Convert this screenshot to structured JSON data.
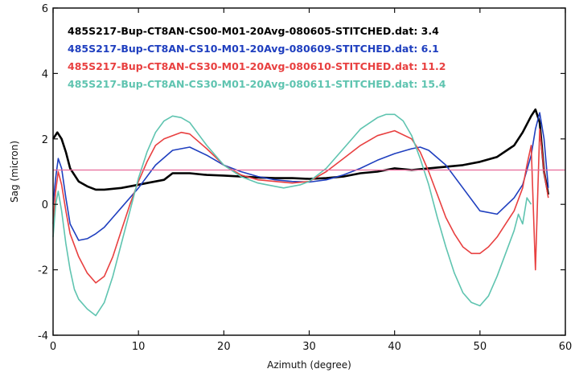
{
  "chart_data": {
    "type": "line",
    "xlabel": "Azimuth (degree)",
    "ylabel": "Sag (micron)",
    "xlim": [
      0,
      60
    ],
    "ylim": [
      -4,
      6
    ],
    "xticks": [
      "0",
      "10",
      "20",
      "30",
      "40",
      "50",
      "60"
    ],
    "yticks": [
      "-4",
      "-2",
      "0",
      "2",
      "4",
      "6"
    ],
    "legend_position": "top-left",
    "reference_line": {
      "y": 1.05,
      "color": "#e86a9a"
    },
    "series": [
      {
        "name": "485S217-Bup-CT8AN-CS00-M01-20Avg-080605-STITCHED.dat: 3.4",
        "color": "#000000",
        "x": [
          0,
          0.5,
          1,
          1.5,
          2,
          3,
          4,
          5,
          6,
          8,
          10,
          11,
          12,
          13,
          14,
          16,
          18,
          20,
          22,
          24,
          26,
          28,
          30,
          32,
          34,
          36,
          38,
          40,
          42,
          44,
          46,
          48,
          50,
          52,
          54,
          55,
          56,
          56.5,
          57,
          57.5,
          58
        ],
        "values": [
          2.0,
          2.2,
          2.0,
          1.6,
          1.1,
          0.7,
          0.55,
          0.45,
          0.45,
          0.5,
          0.6,
          0.65,
          0.7,
          0.75,
          0.95,
          0.95,
          0.9,
          0.88,
          0.85,
          0.82,
          0.8,
          0.8,
          0.78,
          0.8,
          0.85,
          0.95,
          1.0,
          1.1,
          1.05,
          1.1,
          1.15,
          1.2,
          1.3,
          1.45,
          1.8,
          2.2,
          2.7,
          2.9,
          2.5,
          1.0,
          0.3
        ]
      },
      {
        "name": "485S217-Bup-CT8AN-CS10-M01-20Avg-080609-STITCHED.dat: 6.1",
        "color": "#1f3fbf",
        "x": [
          0,
          0.3,
          0.6,
          1,
          1.5,
          2,
          3,
          4,
          5,
          6,
          7,
          8,
          10,
          12,
          14,
          16,
          18,
          20,
          22,
          24,
          26,
          28,
          30,
          32,
          34,
          36,
          38,
          40,
          42,
          43,
          44,
          46,
          48,
          50,
          52,
          54,
          55,
          56,
          56.5,
          57,
          57.5,
          58
        ],
        "values": [
          0.0,
          0.8,
          1.4,
          1.1,
          0.2,
          -0.6,
          -1.1,
          -1.05,
          -0.9,
          -0.7,
          -0.4,
          -0.1,
          0.5,
          1.2,
          1.65,
          1.75,
          1.5,
          1.2,
          1.0,
          0.85,
          0.75,
          0.7,
          0.68,
          0.75,
          0.9,
          1.1,
          1.35,
          1.55,
          1.7,
          1.75,
          1.65,
          1.2,
          0.5,
          -0.2,
          -0.3,
          0.2,
          0.6,
          1.5,
          2.3,
          2.8,
          2.0,
          0.5
        ]
      },
      {
        "name": "485S217-Bup-CT8AN-CS30-M01-20Avg-080610-STITCHED.dat: 11.2",
        "color": "#e84040",
        "x": [
          0,
          0.3,
          0.6,
          1,
          1.5,
          2,
          3,
          4,
          5,
          6,
          7,
          8,
          9,
          10,
          11,
          12,
          13,
          14,
          15,
          16,
          18,
          20,
          22,
          24,
          26,
          28,
          30,
          32,
          34,
          36,
          38,
          40,
          42,
          43,
          44,
          45,
          46,
          47,
          48,
          49,
          50,
          51,
          52,
          53,
          54,
          55,
          55.5,
          56,
          56.5,
          57,
          57.5,
          58
        ],
        "values": [
          -0.6,
          0.4,
          1.0,
          0.6,
          -0.2,
          -0.9,
          -1.6,
          -2.1,
          -2.4,
          -2.2,
          -1.6,
          -0.8,
          0.0,
          0.7,
          1.3,
          1.8,
          2.0,
          2.1,
          2.2,
          2.15,
          1.7,
          1.2,
          0.9,
          0.75,
          0.7,
          0.65,
          0.7,
          1.0,
          1.4,
          1.8,
          2.1,
          2.25,
          2.0,
          1.6,
          1.0,
          0.3,
          -0.4,
          -0.9,
          -1.3,
          -1.5,
          -1.5,
          -1.3,
          -1.0,
          -0.6,
          -0.2,
          0.5,
          1.2,
          1.8,
          -2.0,
          2.3,
          1.0,
          0.2
        ]
      },
      {
        "name": "485S217-Bup-CT8AN-CS30-M01-20Avg-080611-STITCHED.dat: 15.4",
        "color": "#5fc4b0",
        "x": [
          0,
          0.3,
          0.6,
          1,
          1.5,
          2,
          2.5,
          3,
          4,
          5,
          6,
          7,
          8,
          9,
          10,
          11,
          12,
          13,
          14,
          15,
          16,
          18,
          20,
          22,
          24,
          26,
          27,
          28,
          29,
          30,
          32,
          34,
          36,
          38,
          39,
          40,
          41,
          42,
          43,
          44,
          45,
          46,
          47,
          48,
          49,
          50,
          51,
          52,
          53,
          54,
          54.5,
          55,
          55.5,
          56
        ],
        "values": [
          -1.0,
          0.0,
          0.4,
          -0.2,
          -1.2,
          -2.0,
          -2.6,
          -2.9,
          -3.2,
          -3.4,
          -3.0,
          -2.2,
          -1.2,
          -0.2,
          0.8,
          1.6,
          2.2,
          2.55,
          2.7,
          2.65,
          2.5,
          1.8,
          1.2,
          0.85,
          0.65,
          0.55,
          0.5,
          0.55,
          0.6,
          0.7,
          1.1,
          1.7,
          2.3,
          2.65,
          2.75,
          2.75,
          2.55,
          2.1,
          1.4,
          0.6,
          -0.4,
          -1.3,
          -2.1,
          -2.7,
          -3.0,
          -3.1,
          -2.8,
          -2.2,
          -1.5,
          -0.8,
          -0.3,
          -0.6,
          0.2,
          0.0
        ]
      }
    ]
  }
}
